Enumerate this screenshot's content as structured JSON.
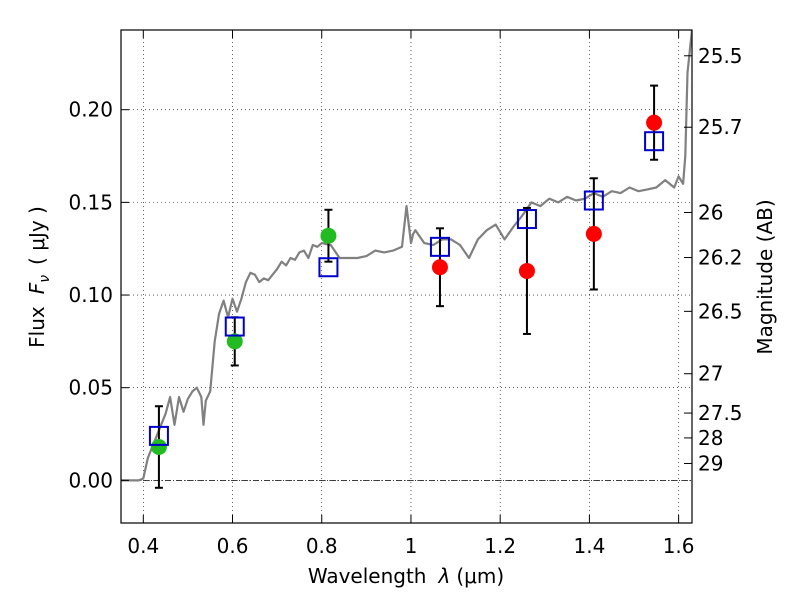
{
  "chart_data": {
    "type": "scatter",
    "xlabel_text": "Wavelength",
    "xlabel_symbol": "λ",
    "xlabel_unit": "(μm)",
    "ylabel_text": "Flux",
    "ylabel_symbol": "F",
    "ylabel_subscript": "ν",
    "ylabel_unit": "( μJy )",
    "y2label": "Magnitude (AB)",
    "xlim": [
      0.35,
      1.63
    ],
    "ylim": [
      -0.023,
      0.243
    ],
    "grid": true,
    "x_ticks": [
      {
        "value": 0.4,
        "label": "0.4"
      },
      {
        "value": 0.6,
        "label": "0.6"
      },
      {
        "value": 0.8,
        "label": "0.8"
      },
      {
        "value": 1.0,
        "label": "1"
      },
      {
        "value": 1.2,
        "label": "1.2"
      },
      {
        "value": 1.4,
        "label": "1.4"
      },
      {
        "value": 1.6,
        "label": "1.6"
      }
    ],
    "y_ticks": [
      {
        "value": 0.0,
        "label": "0.00"
      },
      {
        "value": 0.05,
        "label": "0.05"
      },
      {
        "value": 0.1,
        "label": "0.10"
      },
      {
        "value": 0.15,
        "label": "0.15"
      },
      {
        "value": 0.2,
        "label": "0.20"
      }
    ],
    "y2_ticks": [
      {
        "mag": 25.5,
        "label": "25.5"
      },
      {
        "mag": 25.7,
        "label": "25.7"
      },
      {
        "mag": 26.0,
        "label": "26"
      },
      {
        "mag": 26.2,
        "label": "26.2"
      },
      {
        "mag": 26.5,
        "label": "26.5"
      },
      {
        "mag": 27.0,
        "label": "27"
      },
      {
        "mag": 27.5,
        "label": "27.5"
      },
      {
        "mag": 28.0,
        "label": "28"
      },
      {
        "mag": 29.0,
        "label": "29"
      }
    ],
    "colors": {
      "model": "#808080",
      "model_points": "#0000cc",
      "observed": "#ff0000",
      "observed_alt": "#22bb22",
      "errorbar": "#000000"
    },
    "series": [
      {
        "name": "model_spectrum",
        "kind": "line",
        "x": [
          0.35,
          0.39,
          0.4,
          0.41,
          0.42,
          0.43,
          0.44,
          0.45,
          0.46,
          0.47,
          0.48,
          0.49,
          0.5,
          0.51,
          0.52,
          0.53,
          0.535,
          0.54,
          0.55,
          0.56,
          0.57,
          0.58,
          0.59,
          0.6,
          0.61,
          0.62,
          0.63,
          0.64,
          0.65,
          0.66,
          0.67,
          0.68,
          0.69,
          0.7,
          0.71,
          0.72,
          0.73,
          0.74,
          0.75,
          0.76,
          0.77,
          0.78,
          0.79,
          0.8,
          0.82,
          0.84,
          0.86,
          0.88,
          0.9,
          0.92,
          0.94,
          0.96,
          0.98,
          0.99,
          1.0,
          1.005,
          1.01,
          1.03,
          1.05,
          1.07,
          1.09,
          1.11,
          1.13,
          1.15,
          1.17,
          1.19,
          1.21,
          1.23,
          1.25,
          1.27,
          1.29,
          1.31,
          1.33,
          1.35,
          1.37,
          1.39,
          1.41,
          1.43,
          1.45,
          1.47,
          1.49,
          1.51,
          1.53,
          1.55,
          1.57,
          1.59,
          1.6,
          1.61,
          1.615,
          1.62,
          1.63
        ],
        "y": [
          0.0,
          0.0,
          0.001,
          0.012,
          0.018,
          0.024,
          0.03,
          0.036,
          0.045,
          0.03,
          0.045,
          0.037,
          0.044,
          0.048,
          0.05,
          0.045,
          0.03,
          0.043,
          0.048,
          0.075,
          0.09,
          0.097,
          0.088,
          0.098,
          0.091,
          0.098,
          0.107,
          0.112,
          0.111,
          0.107,
          0.109,
          0.108,
          0.111,
          0.114,
          0.118,
          0.116,
          0.12,
          0.119,
          0.123,
          0.124,
          0.12,
          0.127,
          0.126,
          0.128,
          0.127,
          0.12,
          0.12,
          0.12,
          0.121,
          0.124,
          0.123,
          0.124,
          0.126,
          0.148,
          0.128,
          0.133,
          0.135,
          0.128,
          0.127,
          0.13,
          0.13,
          0.127,
          0.12,
          0.13,
          0.135,
          0.138,
          0.13,
          0.137,
          0.143,
          0.15,
          0.148,
          0.152,
          0.15,
          0.153,
          0.151,
          0.152,
          0.155,
          0.153,
          0.156,
          0.155,
          0.158,
          0.156,
          0.157,
          0.158,
          0.162,
          0.158,
          0.164,
          0.16,
          0.175,
          0.22,
          0.243
        ]
      },
      {
        "name": "model_photometry",
        "kind": "square",
        "x": [
          0.435,
          0.605,
          0.815,
          1.065,
          1.26,
          1.41,
          1.545
        ],
        "y": [
          0.024,
          0.083,
          0.115,
          0.126,
          0.141,
          0.151,
          0.183
        ]
      },
      {
        "name": "observed_photometry",
        "kind": "circle",
        "x": [
          0.435,
          0.605,
          0.815,
          1.065,
          1.26,
          1.41,
          1.545
        ],
        "y": [
          0.018,
          0.075,
          0.132,
          0.115,
          0.113,
          0.133,
          0.193
        ],
        "yerr_low": [
          0.022,
          0.013,
          0.014,
          0.021,
          0.034,
          0.03,
          0.02
        ],
        "yerr_high": [
          0.022,
          0.013,
          0.014,
          0.021,
          0.034,
          0.03,
          0.02
        ],
        "color_keys": [
          "observed_alt",
          "observed_alt",
          "observed_alt",
          "observed",
          "observed",
          "observed",
          "observed"
        ]
      }
    ]
  }
}
